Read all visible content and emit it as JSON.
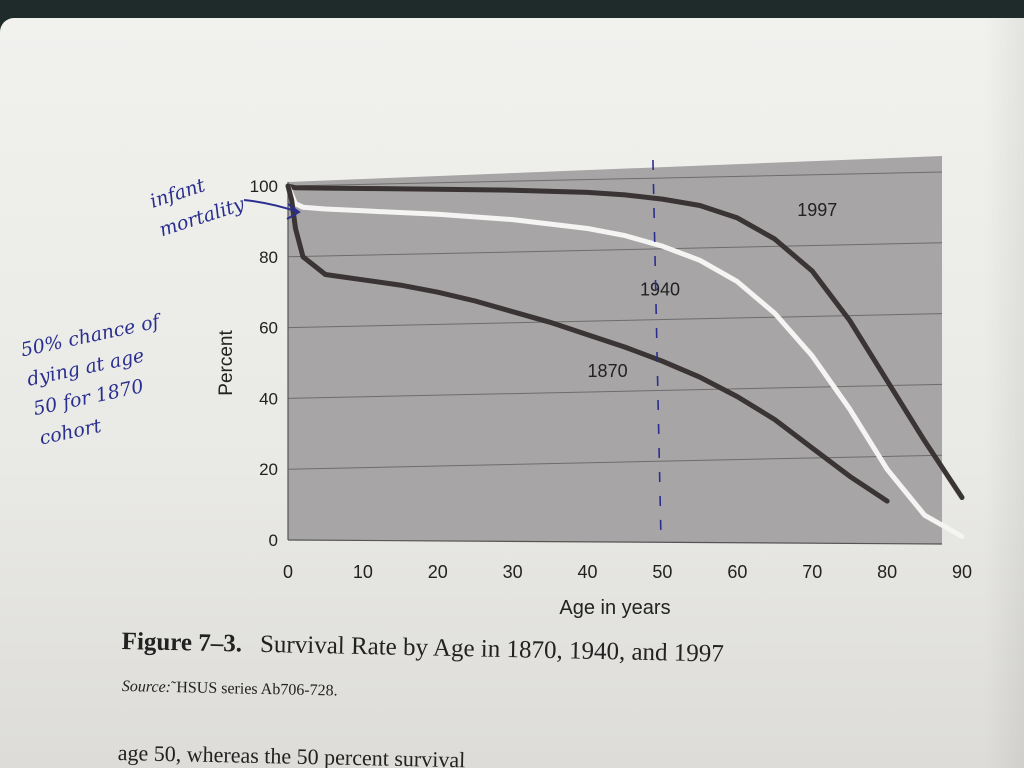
{
  "chart_data": {
    "type": "line",
    "xlabel": "Age in years",
    "ylabel": "Percent",
    "xlim": [
      0,
      90
    ],
    "ylim": [
      0,
      100
    ],
    "xticks": [
      "0",
      "10",
      "20",
      "30",
      "40",
      "50",
      "60",
      "70",
      "80",
      "90"
    ],
    "yticks": [
      "0",
      "20",
      "40",
      "60",
      "80",
      "100"
    ],
    "grid": true,
    "series": [
      {
        "name": "1997",
        "color": "#3a3434",
        "x": [
          0,
          1,
          5,
          10,
          20,
          30,
          40,
          45,
          50,
          55,
          60,
          65,
          70,
          75,
          80,
          85,
          90
        ],
        "y": [
          100,
          99.5,
          99.4,
          99.3,
          99.1,
          98.8,
          98.2,
          97.5,
          96.3,
          94.5,
          91,
          85,
          76,
          62,
          45,
          28,
          12
        ]
      },
      {
        "name": "1940",
        "color": "#f4f4f2",
        "x": [
          0,
          1,
          2,
          5,
          10,
          20,
          30,
          40,
          45,
          50,
          55,
          60,
          65,
          70,
          75,
          80,
          85,
          90
        ],
        "y": [
          100,
          95,
          94,
          93.5,
          93,
          92,
          90.5,
          88,
          86,
          83,
          79,
          73,
          64,
          52,
          37,
          20,
          7,
          1
        ]
      },
      {
        "name": "1870",
        "color": "#3a3434",
        "x": [
          0,
          0.5,
          1,
          2,
          5,
          10,
          15,
          20,
          25,
          30,
          35,
          40,
          45,
          50,
          55,
          60,
          65,
          70,
          75,
          80
        ],
        "y": [
          100,
          96,
          88,
          80,
          75,
          73.5,
          72,
          70,
          67.5,
          64.5,
          61.5,
          58,
          54.5,
          50.5,
          46,
          40.5,
          34,
          26,
          18,
          11
        ]
      }
    ],
    "annotations": [
      "infant mortality",
      "50% chance of dying at age 50 for 1870 cohort"
    ],
    "reference_line_x": 49
  },
  "caption": {
    "label": "Figure 7–3.",
    "title": "Survival Rate by Age in 1870, 1940, and 1997"
  },
  "source": {
    "label": "Source:",
    "text": "˜HSUS series Ab706-728."
  },
  "body_text": "age 50, whereas the 50 percent survival",
  "handwriting": {
    "infant": "infant\nmortality",
    "fifty": "50% chance of\ndying at age\n50 for 1870\ncohort"
  },
  "colors": {
    "plot_background": "#a7a5a5",
    "grid": "#6f6c6c",
    "ink": "#2a2f8f"
  }
}
